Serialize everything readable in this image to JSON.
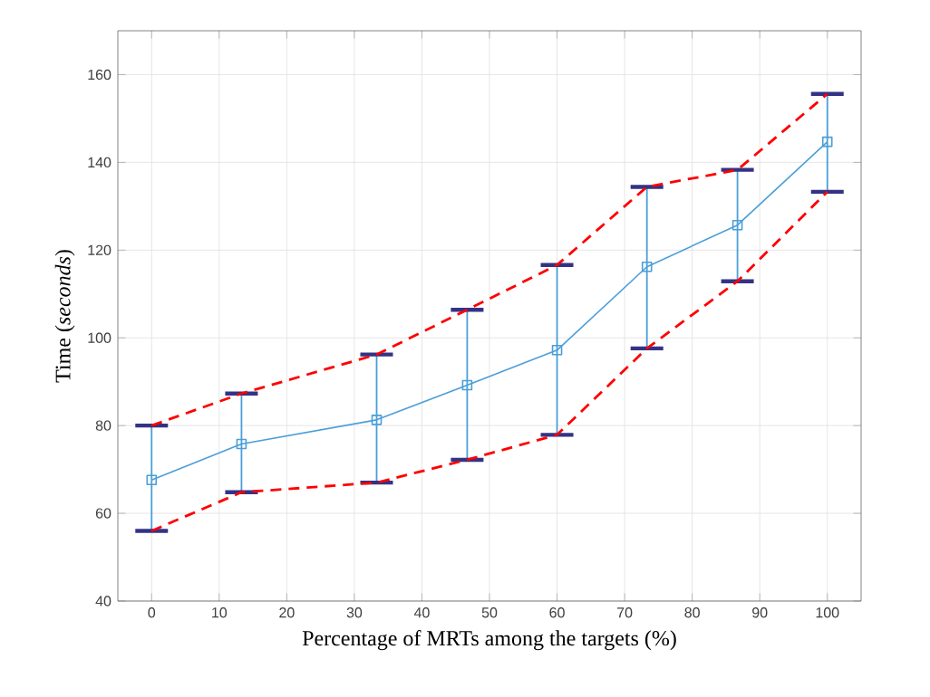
{
  "chart_data": {
    "type": "line",
    "xlabel": "Percentage of MRTs among the targets (%)",
    "ylabel": "Time (*seconds*)",
    "x": [
      0,
      13.3,
      33.3,
      46.7,
      60,
      73.3,
      86.7,
      100
    ],
    "series": [
      {
        "color": "#4a9fd8",
        "marker": "square",
        "line_style": "solid",
        "values": [
          67.6,
          75.8,
          81.3,
          89.2,
          97.2,
          116.2,
          125.7,
          144.7
        ],
        "errors": [
          [
            56,
            80
          ],
          [
            64.8,
            87.3
          ],
          [
            67,
            96.2
          ],
          [
            72.2,
            106.4
          ],
          [
            77.9,
            116.6
          ],
          [
            97.6,
            134.4
          ],
          [
            112.9,
            138.3
          ],
          [
            133.3,
            155.6
          ]
        ]
      },
      {
        "color": "#ff0000",
        "marker": "none",
        "line_style": "dashed",
        "values": [
          80,
          87.3,
          96.2,
          106.4,
          116.6,
          134.4,
          138.3,
          155.6
        ]
      },
      {
        "color": "#ff0000",
        "marker": "none",
        "line_style": "dashed",
        "values": [
          56,
          64.8,
          67,
          72.2,
          77.9,
          97.6,
          112.9,
          133.3
        ]
      }
    ],
    "xlim": [
      -5,
      105
    ],
    "ylim": [
      40,
      170
    ],
    "xticks": [
      0,
      10,
      20,
      30,
      40,
      50,
      60,
      70,
      80,
      90,
      100
    ],
    "yticks": [
      40,
      60,
      80,
      100,
      120,
      140,
      160
    ],
    "grid": true
  }
}
